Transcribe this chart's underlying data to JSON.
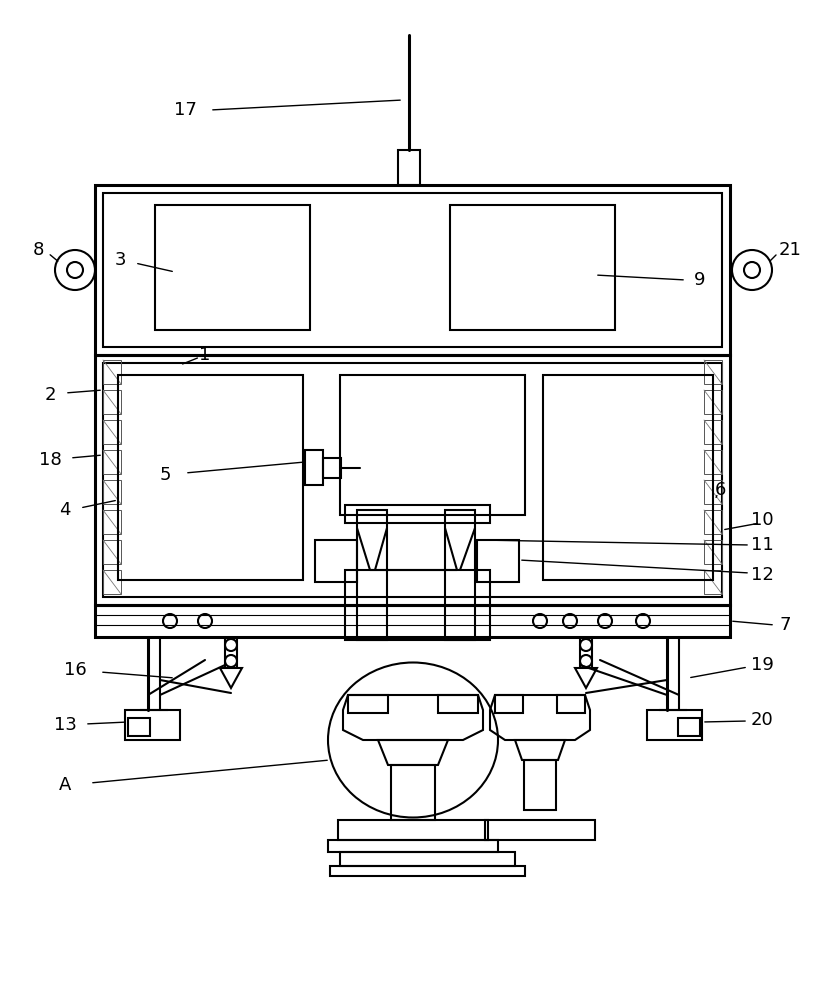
{
  "bg_color": "#ffffff",
  "line_color": "#000000",
  "lw": 1.5,
  "lw2": 2.2,
  "fs": 13
}
